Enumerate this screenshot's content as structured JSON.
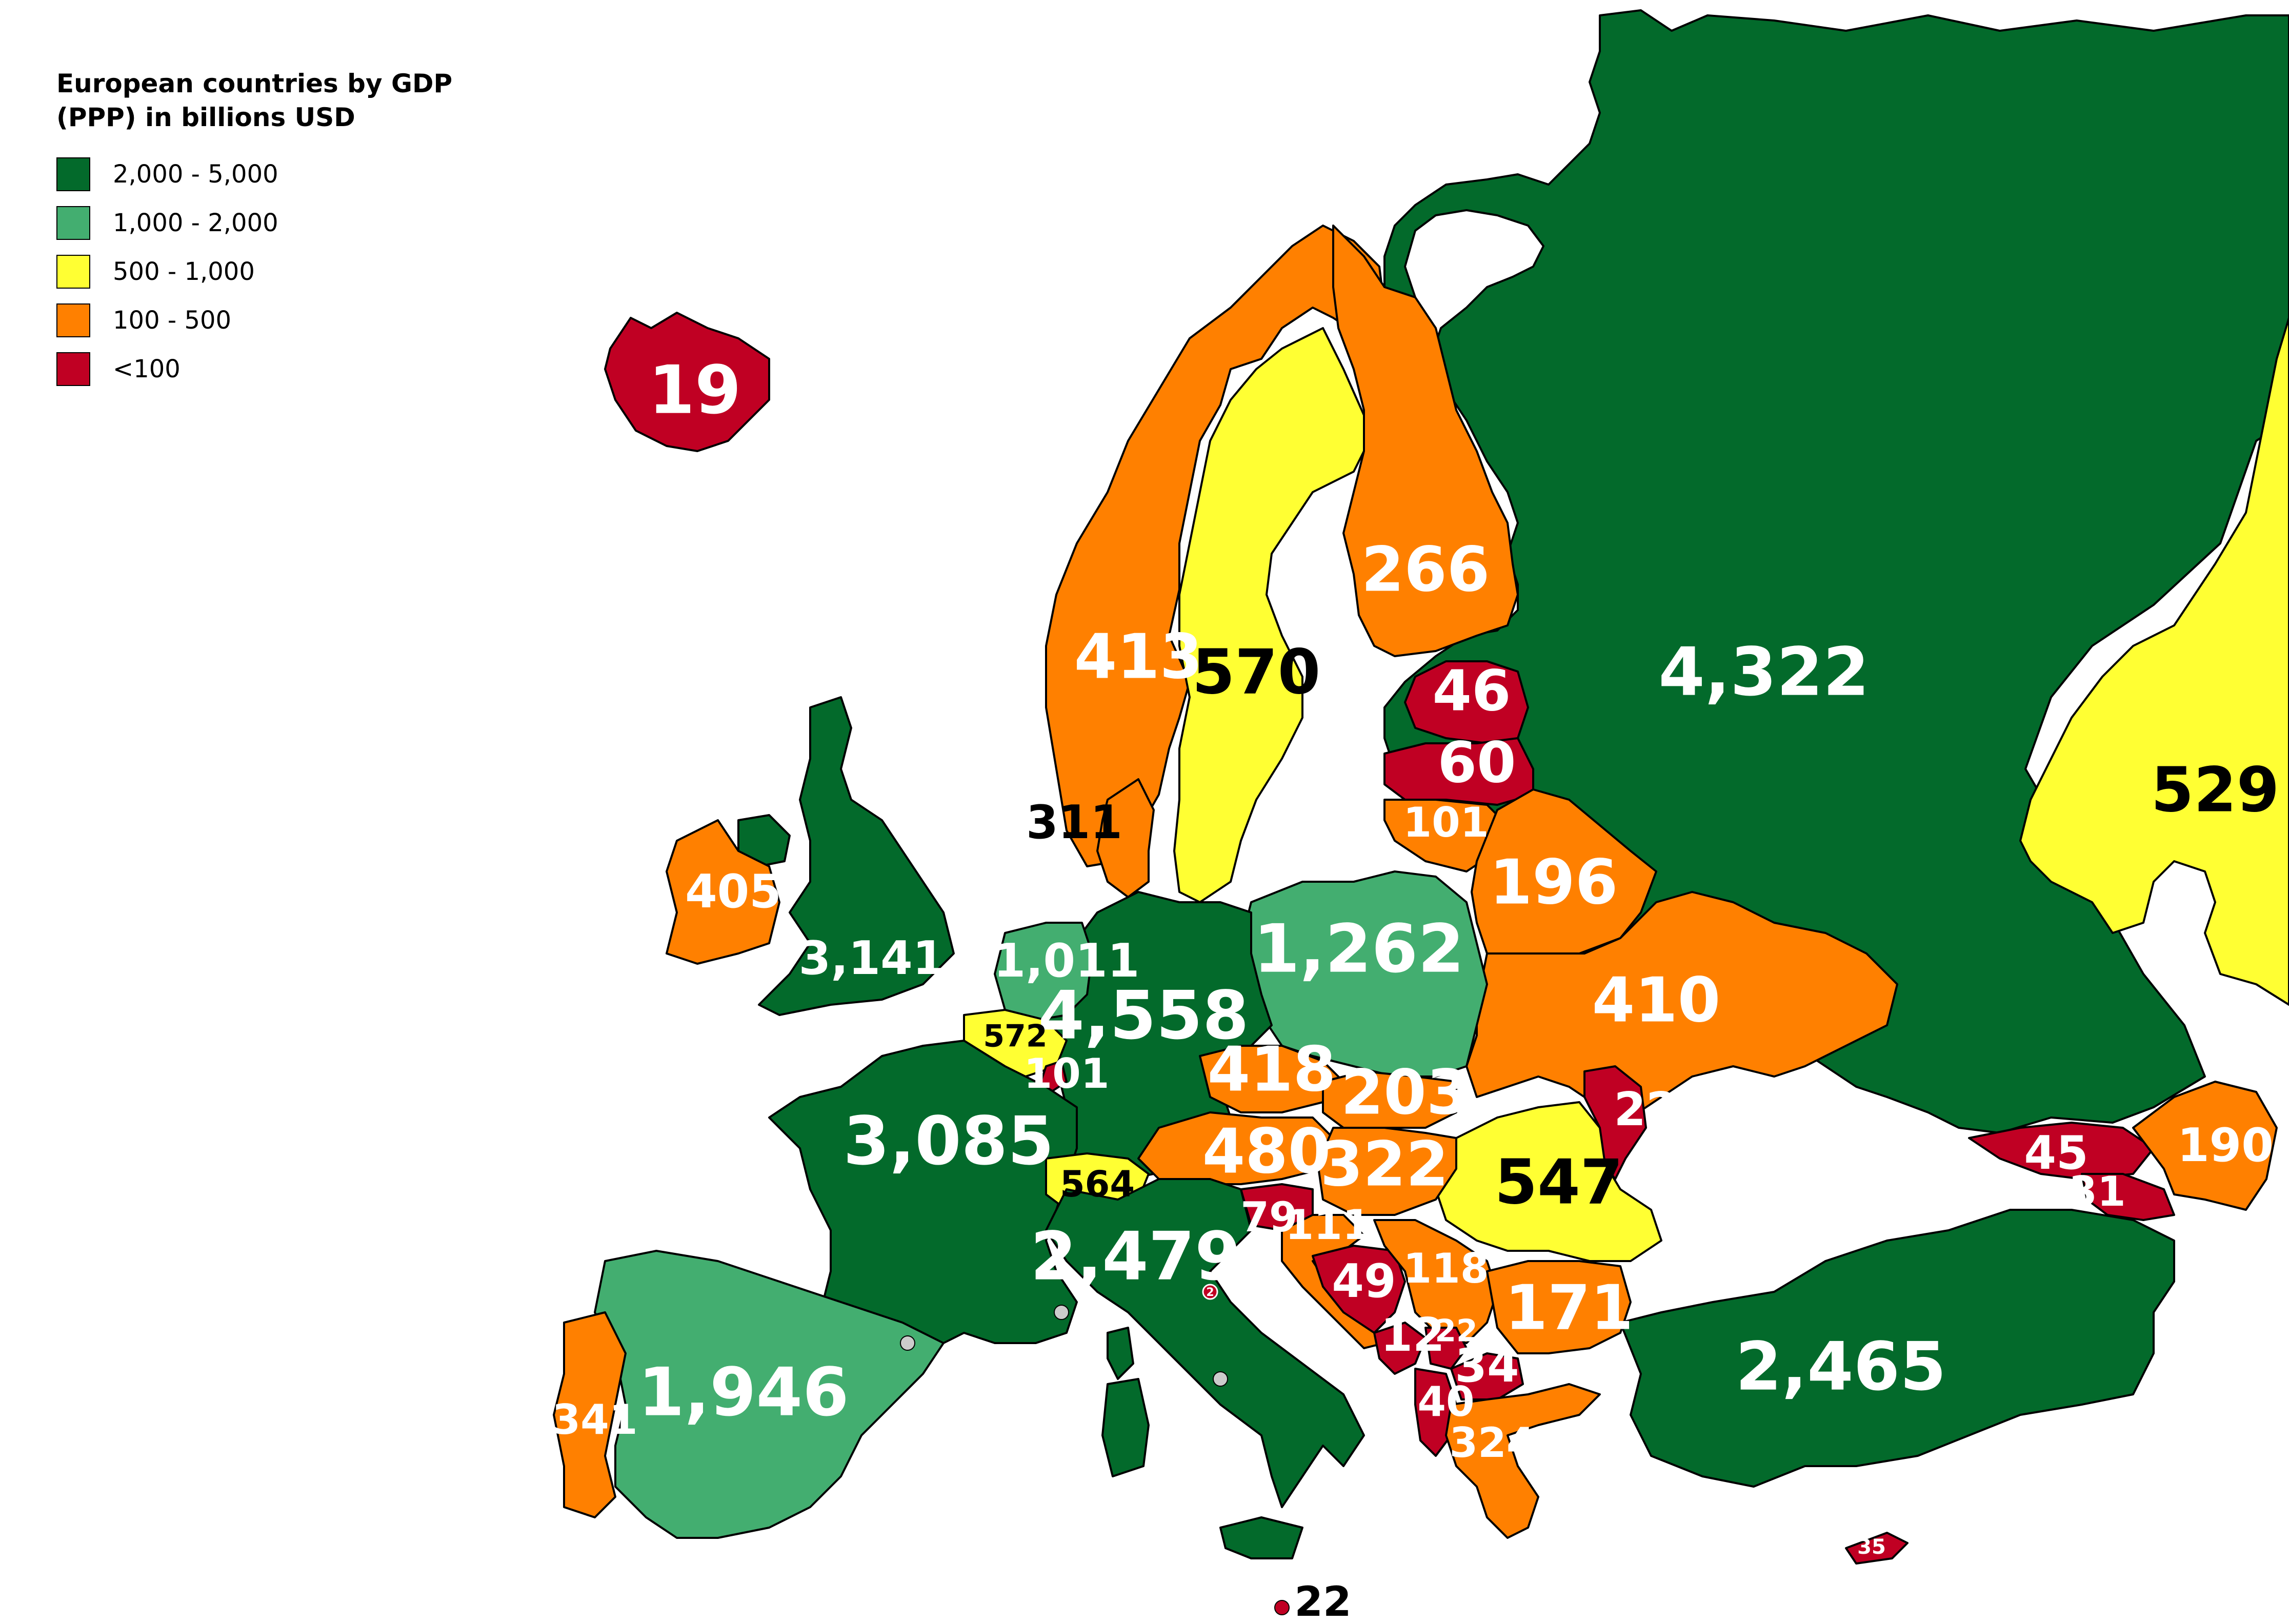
{
  "legend": {
    "title": "European countries by GDP (PPP) in billions USD",
    "items": [
      {
        "label": "2,000 - 5,000",
        "color": "#036a2b"
      },
      {
        "label": "1,000 - 2,000",
        "color": "#43ae70"
      },
      {
        "label": "500 - 1,000",
        "color": "#ffff33"
      },
      {
        "label": "100 - 500",
        "color": "#ff8000"
      },
      {
        "label": "<100",
        "color": "#c00023"
      }
    ]
  },
  "values": {
    "iceland": "19",
    "norway": "413",
    "sweden": "570",
    "finland": "266",
    "russia": "4,322",
    "kazakhstan": "529",
    "estonia": "46",
    "latvia": "60",
    "lithuania": "101",
    "belarus": "196",
    "denmark": "311",
    "ireland": "405",
    "uk": "3,141",
    "netherlands": "1,011",
    "germany": "4,558",
    "poland": "1,262",
    "belgium": "572",
    "luxembourg": "101",
    "france": "3,085",
    "czechia": "418",
    "slovakia": "203",
    "ukraine": "410",
    "moldova": "22",
    "austria": "480",
    "hungary": "322",
    "switzerland": "564",
    "romania": "547",
    "slovenia": "79",
    "croatia": "111",
    "italy": "2,479",
    "san_marino": "2",
    "bosnia": "49",
    "serbia": "118",
    "bulgaria": "171",
    "montenegro": "12",
    "kosovo": "22",
    "north_macedonia": "34",
    "albania": "40",
    "greece": "324",
    "spain": "1,946",
    "portugal": "341",
    "turkey": "2,465",
    "georgia": "45",
    "armenia": "31",
    "azerbaijan": "190",
    "cyprus": "35",
    "malta": "22"
  }
}
